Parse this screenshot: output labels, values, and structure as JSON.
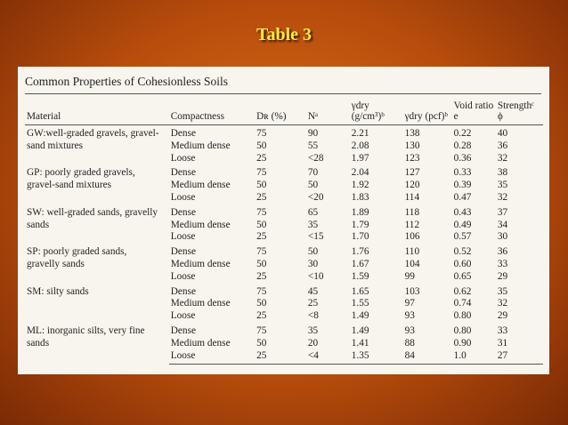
{
  "slide_title": "Table 3",
  "table": {
    "caption": "Common Properties of Cohesionless Soils",
    "header": [
      "Material",
      "Compactness",
      "Dʀ (%)",
      "Nᵃ",
      "γdry (g/cm³)ᵇ",
      "γdry (pcf)ᵇ",
      "Void ratio e",
      "Strengthᶜ ϕ"
    ],
    "groups": [
      {
        "material": "GW:well-graded gravels, gravel-sand mixtures",
        "rows": [
          [
            "Dense",
            "75",
            "90",
            "2.21",
            "138",
            "0.22",
            "40"
          ],
          [
            "Medium dense",
            "50",
            "55",
            "2.08",
            "130",
            "0.28",
            "36"
          ],
          [
            "Loose",
            "25",
            "<28",
            "1.97",
            "123",
            "0.36",
            "32"
          ]
        ]
      },
      {
        "material": "GP: poorly graded gravels, gravel-sand mixtures",
        "rows": [
          [
            "Dense",
            "75",
            "70",
            "2.04",
            "127",
            "0.33",
            "38"
          ],
          [
            "Medium dense",
            "50",
            "50",
            "1.92",
            "120",
            "0.39",
            "35"
          ],
          [
            "Loose",
            "25",
            "<20",
            "1.83",
            "114",
            "0.47",
            "32"
          ]
        ]
      },
      {
        "material": "SW: well-graded sands, gravelly sands",
        "rows": [
          [
            "Dense",
            "75",
            "65",
            "1.89",
            "118",
            "0.43",
            "37"
          ],
          [
            "Medium dense",
            "50",
            "35",
            "1.79",
            "112",
            "0.49",
            "34"
          ],
          [
            "Loose",
            "25",
            "<15",
            "1.70",
            "106",
            "0.57",
            "30"
          ]
        ]
      },
      {
        "material": "SP: poorly graded sands, gravelly sands",
        "rows": [
          [
            "Dense",
            "75",
            "50",
            "1.76",
            "110",
            "0.52",
            "36"
          ],
          [
            "Medium dense",
            "50",
            "30",
            "1.67",
            "104",
            "0.60",
            "33"
          ],
          [
            "Loose",
            "25",
            "<10",
            "1.59",
            "99",
            "0.65",
            "29"
          ]
        ]
      },
      {
        "material": "SM: silty sands",
        "rows": [
          [
            "Dense",
            "75",
            "45",
            "1.65",
            "103",
            "0.62",
            "35"
          ],
          [
            "Medium dense",
            "50",
            "25",
            "1.55",
            "97",
            "0.74",
            "32"
          ],
          [
            "Loose",
            "25",
            "<8",
            "1.49",
            "93",
            "0.80",
            "29"
          ]
        ]
      },
      {
        "material": "ML: inorganic silts, very fine sands",
        "rows": [
          [
            "Dense",
            "75",
            "35",
            "1.49",
            "93",
            "0.80",
            "33"
          ],
          [
            "Medium dense",
            "50",
            "20",
            "1.41",
            "88",
            "0.90",
            "31"
          ],
          [
            "Loose",
            "25",
            "<4",
            "1.35",
            "84",
            "1.0",
            "27"
          ]
        ]
      }
    ]
  }
}
